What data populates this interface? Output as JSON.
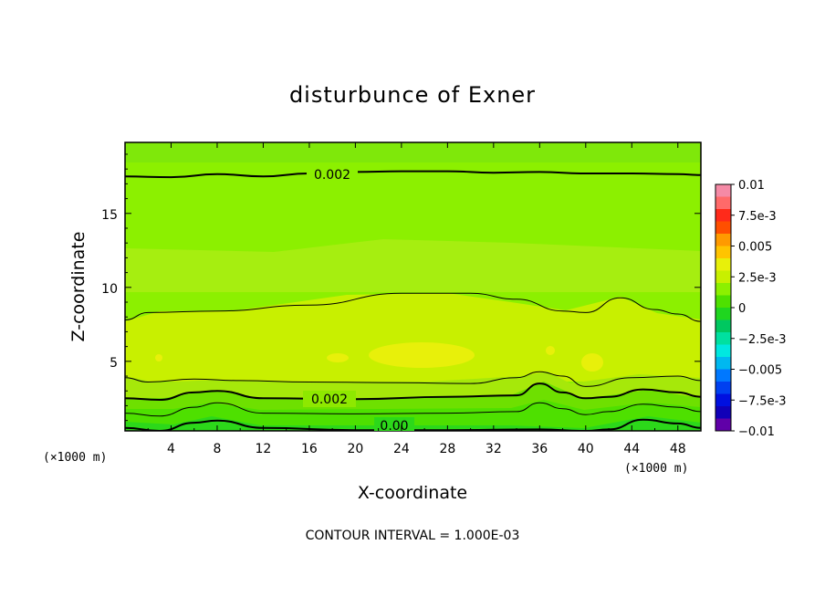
{
  "chart_data": {
    "type": "heatmap",
    "title": "disturbunce of Exner",
    "xlabel": "X-coordinate",
    "ylabel": "Z-coordinate",
    "x_unit_left": "(×1000 m)",
    "x_unit_right": "(×1000 m)",
    "xlim": [
      0,
      50
    ],
    "ylim": [
      0.3,
      19.8
    ],
    "x_ticks": [
      4,
      8,
      12,
      16,
      20,
      24,
      28,
      32,
      36,
      40,
      44,
      48
    ],
    "y_ticks": [
      5,
      10,
      15
    ],
    "colorbar": {
      "range": [
        -0.01,
        0.01
      ],
      "tick_values": [
        0.01,
        0.0075,
        0.005,
        0.0025,
        0,
        -0.0025,
        -0.005,
        -0.0075,
        -0.01
      ],
      "tick_labels": [
        "0.01",
        "7.5e-3",
        "0.005",
        "2.5e-3",
        "0",
        "−2.5e-3",
        "−0.005",
        "−7.5e-3",
        "−0.01"
      ],
      "colors": [
        "#f58aa6",
        "#ff6a6a",
        "#ff2a1a",
        "#ff4f00",
        "#ff9a00",
        "#ffc400",
        "#e8f00a",
        "#c8f000",
        "#8cf000",
        "#4ee000",
        "#1fd61f",
        "#00c860",
        "#00e0a0",
        "#00e8e0",
        "#00b8f0",
        "#0078ff",
        "#0040f0",
        "#0010e0",
        "#1000b8",
        "#6000a8"
      ]
    },
    "contour_labels": [
      "0.002",
      "0.002",
      "0.00"
    ],
    "contours": [
      {
        "level": 0.0,
        "x": [
          0,
          3,
          6,
          8,
          12,
          20,
          28,
          36,
          40,
          42,
          45,
          48,
          50
        ],
        "z": [
          0.5,
          0.3,
          0.85,
          1.0,
          0.5,
          0.35,
          0.35,
          0.4,
          0.3,
          0.4,
          1.05,
          0.8,
          0.5
        ]
      },
      {
        "level": 0.001,
        "x": [
          0,
          3,
          6,
          8,
          12,
          20,
          28,
          34,
          36,
          38,
          40,
          42,
          45,
          48,
          50
        ],
        "z": [
          1.5,
          1.3,
          1.9,
          2.2,
          1.5,
          1.45,
          1.5,
          1.6,
          2.2,
          1.8,
          1.4,
          1.6,
          2.1,
          1.9,
          1.6
        ]
      },
      {
        "level": 0.002,
        "x": [
          0,
          3,
          6,
          8,
          12,
          20,
          28,
          34,
          36,
          38,
          40,
          42,
          45,
          48,
          50
        ],
        "z": [
          2.5,
          2.4,
          2.9,
          3.0,
          2.5,
          2.45,
          2.6,
          2.7,
          3.5,
          2.9,
          2.5,
          2.6,
          3.1,
          2.9,
          2.6
        ]
      },
      {
        "level": 0.003,
        "x": [
          0,
          2,
          6,
          10,
          16,
          24,
          30,
          34,
          36,
          38,
          40,
          44,
          48,
          50
        ],
        "z": [
          3.9,
          3.6,
          3.8,
          3.7,
          3.6,
          3.55,
          3.5,
          3.9,
          4.3,
          4.0,
          3.3,
          3.9,
          4.0,
          3.7
        ]
      },
      {
        "level": 0.003,
        "x": [
          0,
          2,
          8,
          16,
          24,
          30,
          34,
          38,
          40,
          43,
          46,
          48,
          50
        ],
        "z": [
          7.8,
          8.3,
          8.4,
          8.8,
          9.6,
          9.6,
          9.2,
          8.4,
          8.3,
          9.3,
          8.5,
          8.2,
          7.7
        ]
      },
      {
        "level": 0.002,
        "x": [
          0,
          4,
          8,
          12,
          16,
          20,
          24,
          28,
          32,
          36,
          40,
          44,
          48,
          50
        ],
        "z": [
          17.5,
          17.45,
          17.65,
          17.5,
          17.7,
          17.8,
          17.85,
          17.85,
          17.75,
          17.8,
          17.7,
          17.7,
          17.65,
          17.6
        ]
      }
    ],
    "note": "CONTOUR INTERVAL = 1.000E-03"
  }
}
